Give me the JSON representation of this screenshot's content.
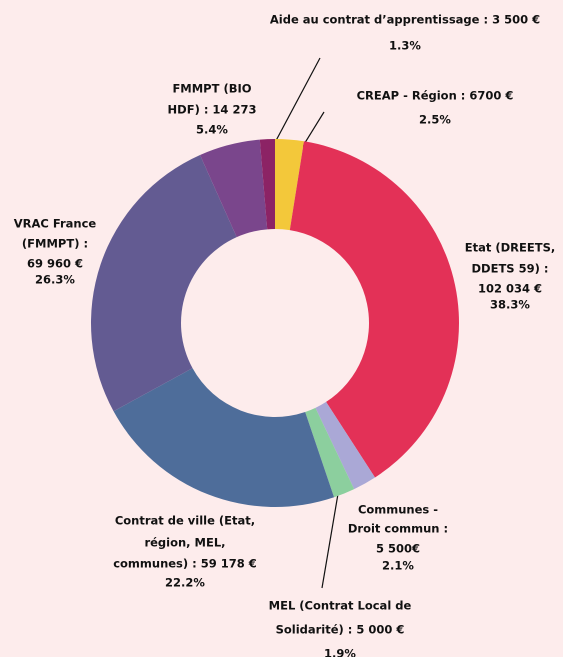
{
  "chart_data": {
    "type": "donut",
    "labels": [
      [
        "CREAP - Région : 6700 €"
      ],
      [
        "Etat (DREETS,",
        "DDETS 59) :",
        "102 034 €"
      ],
      [
        "Communes -",
        "Droit commun :",
        "5 500€"
      ],
      [
        "MEL (Contrat Local de",
        "Solidarité) : 5 000 €"
      ],
      [
        "Contrat de ville (Etat,",
        "région, MEL,",
        "communes) : 59 178 €"
      ],
      [
        "VRAC France",
        "(FMMPT) :",
        "69 960 €"
      ],
      [
        "FMMPT (BIO",
        "HDF) : 14 273"
      ],
      [
        "Aide au contrat d’apprentissage : 3 500 €"
      ]
    ],
    "values": [
      6700,
      102034,
      5500,
      5000,
      59178,
      69960,
      14273,
      3500
    ],
    "percent_labels": [
      "2.5%",
      "38.3%",
      "2.1%",
      "1.9%",
      "22.2%",
      "26.3%",
      "5.4%",
      "1.3%"
    ],
    "colors": [
      "#f3c83a",
      "#e33157",
      "#aaa8d6",
      "#8ccf9e",
      "#4e6d9a",
      "#635b92",
      "#7a468c",
      "#8c2365"
    ]
  }
}
